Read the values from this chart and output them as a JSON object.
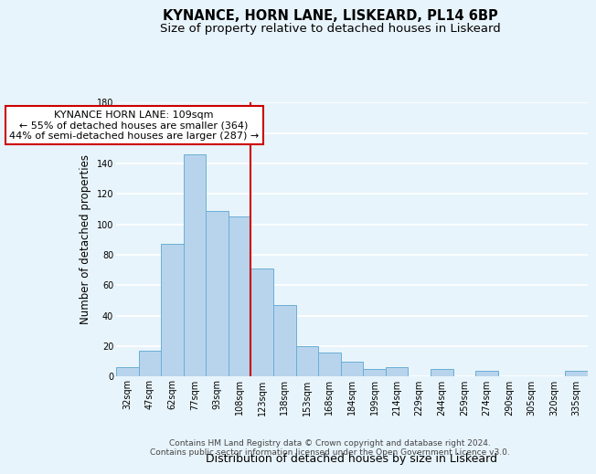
{
  "title": "KYNANCE, HORN LANE, LISKEARD, PL14 6BP",
  "subtitle": "Size of property relative to detached houses in Liskeard",
  "xlabel": "Distribution of detached houses by size in Liskeard",
  "ylabel": "Number of detached properties",
  "bar_labels": [
    "32sqm",
    "47sqm",
    "62sqm",
    "77sqm",
    "93sqm",
    "108sqm",
    "123sqm",
    "138sqm",
    "153sqm",
    "168sqm",
    "184sqm",
    "199sqm",
    "214sqm",
    "229sqm",
    "244sqm",
    "259sqm",
    "274sqm",
    "290sqm",
    "305sqm",
    "320sqm",
    "335sqm"
  ],
  "bar_values": [
    6,
    17,
    87,
    146,
    109,
    105,
    71,
    47,
    20,
    16,
    10,
    5,
    6,
    0,
    5,
    0,
    4,
    0,
    0,
    0,
    4
  ],
  "bar_color": "#b8d4ed",
  "bar_edge_color": "#6aaed6",
  "vline_x": 5.5,
  "vline_color": "#cc0000",
  "annotation_title": "KYNANCE HORN LANE: 109sqm",
  "annotation_line1": "← 55% of detached houses are smaller (364)",
  "annotation_line2": "44% of semi-detached houses are larger (287) →",
  "annotation_box_color": "#ffffff",
  "annotation_box_edge": "#cc0000",
  "ylim": [
    0,
    180
  ],
  "yticks": [
    0,
    20,
    40,
    60,
    80,
    100,
    120,
    140,
    160,
    180
  ],
  "footer1": "Contains HM Land Registry data © Crown copyright and database right 2024.",
  "footer2": "Contains public sector information licensed under the Open Government Licence v3.0.",
  "bg_color": "#e8f4fb",
  "plot_bg_color": "#e8f4fb",
  "grid_color": "#ffffff",
  "title_fontsize": 10.5,
  "subtitle_fontsize": 9.5,
  "tick_fontsize": 7,
  "ylabel_fontsize": 8.5,
  "xlabel_fontsize": 9,
  "footer_fontsize": 6.5,
  "ann_fontsize": 8
}
